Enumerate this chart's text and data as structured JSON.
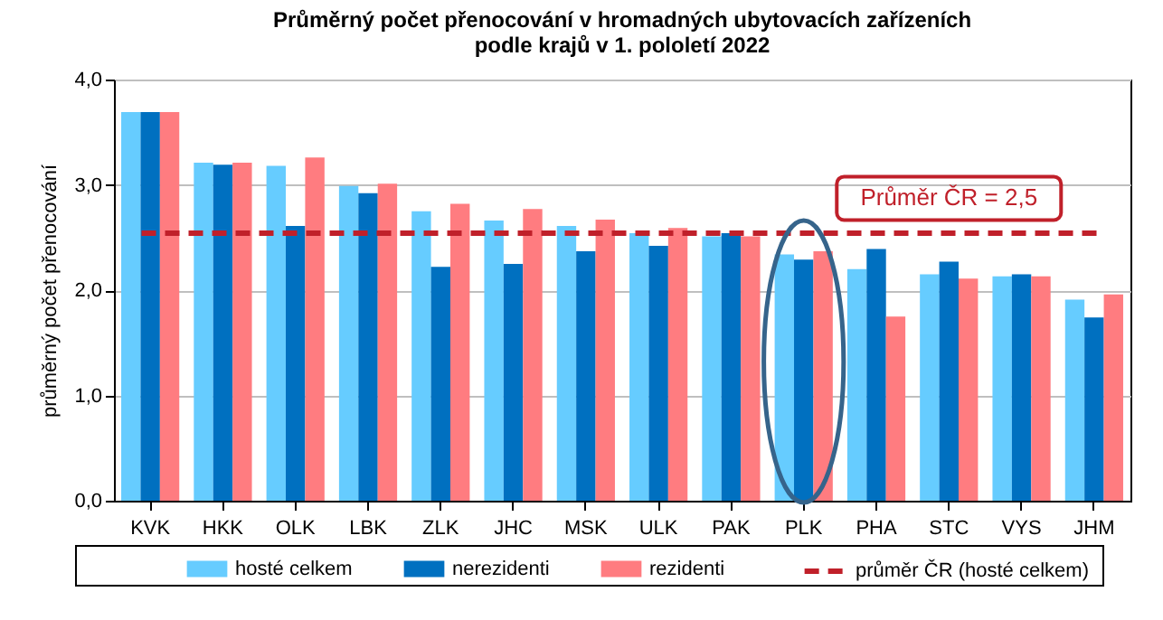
{
  "chart_data": {
    "type": "bar",
    "title": "Průměrný počet přenocování v hromadných ubytovacích zařízeních\npodle krajů v 1. pololetí 2022",
    "ylabel": "průměrný počet přenocování",
    "categories": [
      "KVK",
      "HKK",
      "OLK",
      "LBK",
      "ZLK",
      "JHC",
      "MSK",
      "ULK",
      "PAK",
      "PLK",
      "PHA",
      "STC",
      "VYS",
      "JHM"
    ],
    "series": [
      {
        "name": "hosté celkem",
        "color": "#66ccff",
        "values": [
          3.69,
          3.21,
          3.18,
          2.99,
          2.75,
          2.66,
          2.61,
          2.54,
          2.51,
          2.34,
          2.2,
          2.15,
          2.13,
          1.91
        ]
      },
      {
        "name": "nerezidenti",
        "color": "#0070c0",
        "values": [
          3.69,
          3.19,
          2.61,
          2.92,
          2.22,
          2.25,
          2.37,
          2.42,
          2.54,
          2.29,
          2.39,
          2.27,
          2.15,
          1.74
        ]
      },
      {
        "name": "rezidenti",
        "color": "#ff7c80",
        "values": [
          3.69,
          3.21,
          3.26,
          3.01,
          2.82,
          2.77,
          2.67,
          2.59,
          2.51,
          2.37,
          1.75,
          2.11,
          2.13,
          1.96
        ]
      }
    ],
    "ylim": [
      0,
      4
    ],
    "yticks": [
      {
        "value": 0,
        "label": "0,0"
      },
      {
        "value": 1,
        "label": "1,0"
      },
      {
        "value": 2,
        "label": "2,0"
      },
      {
        "value": 3,
        "label": "3,0"
      },
      {
        "value": 4,
        "label": "4,0"
      }
    ],
    "grid": "y",
    "legend": "bottom",
    "ref_lines": [
      {
        "axis": "y",
        "value": 2.54,
        "label": "průměr ČR (hosté celkem)",
        "color": "#c0202a",
        "line_style": "dashed"
      }
    ],
    "annotations": [
      "Průměr ČR = 2,5"
    ]
  }
}
